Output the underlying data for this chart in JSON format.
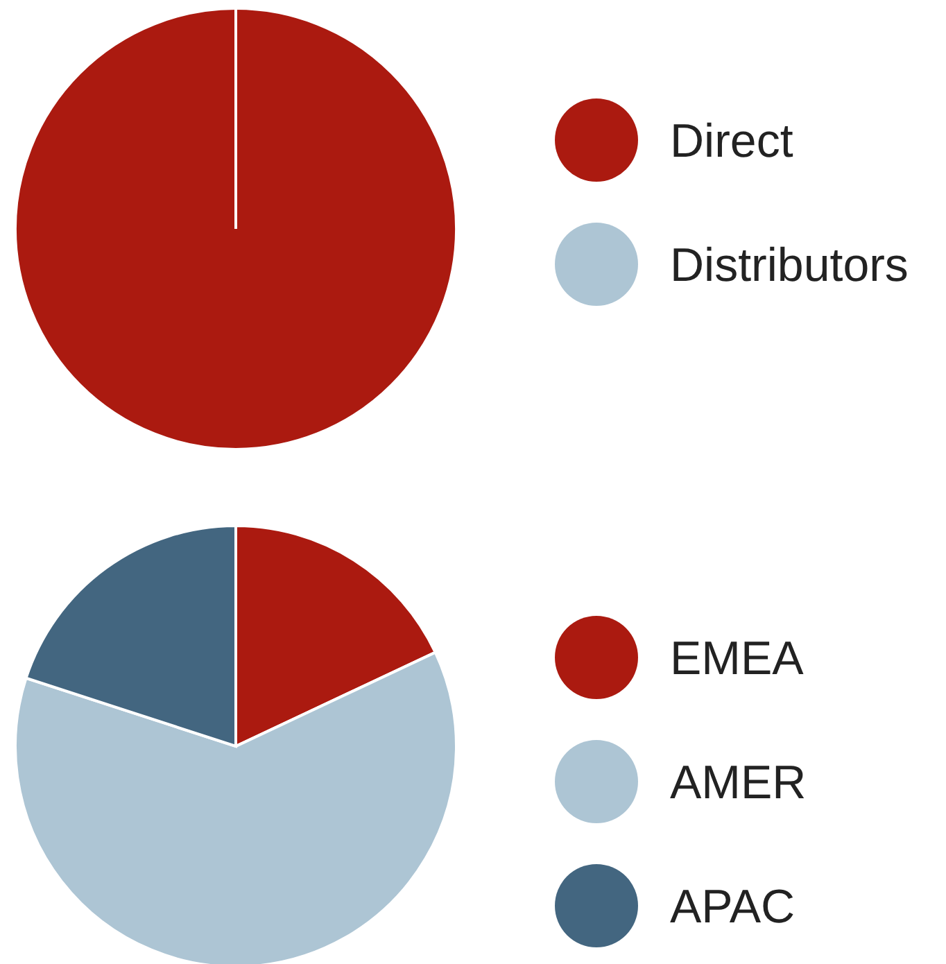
{
  "chart_data": [
    {
      "type": "pie",
      "categories": [
        "Direct",
        "Distributors"
      ],
      "values": [
        100,
        0
      ],
      "colors": [
        "#ab1a10",
        "#adc5d4"
      ],
      "legend": "right"
    },
    {
      "type": "pie",
      "categories": [
        "EMEA",
        "AMER",
        "APAC"
      ],
      "values": [
        18,
        62,
        20
      ],
      "colors": [
        "#ab1a10",
        "#adc5d4",
        "#436680"
      ],
      "legend": "right"
    }
  ]
}
